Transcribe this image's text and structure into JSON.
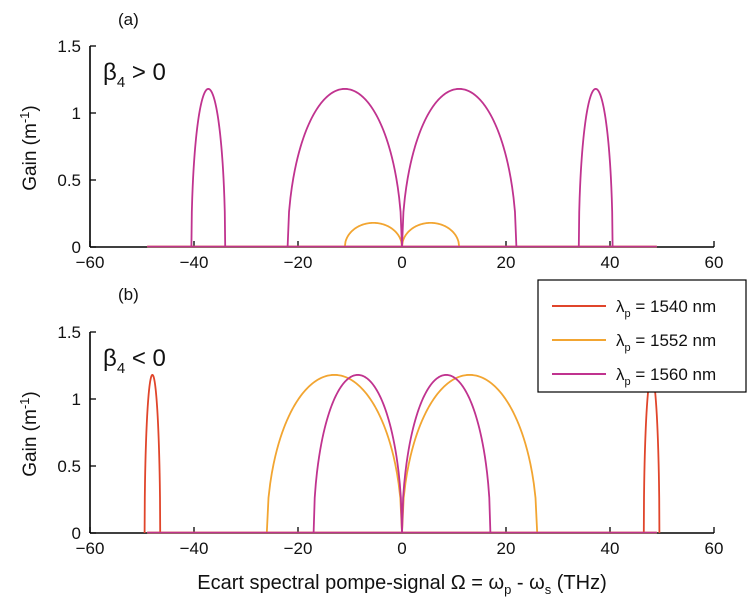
{
  "colors": {
    "red": "#e0452b",
    "orange": "#f2a531",
    "magenta": "#c0338f"
  },
  "legend": {
    "entries": [
      {
        "prefix": "λ",
        "sub": "p",
        "text": " = 1540 nm",
        "color": "#e0452b"
      },
      {
        "prefix": "λ",
        "sub": "p",
        "text": " = 1552 nm",
        "color": "#f2a531"
      },
      {
        "prefix": "λ",
        "sub": "p",
        "text": " = 1560 nm",
        "color": "#c0338f"
      }
    ]
  },
  "xlabel": {
    "main": "Ecart spectral pompe-signal Ω = ω",
    "sub1": "p",
    "mid": " - ω",
    "sub2": "s",
    "end": " (THz)"
  },
  "chart_data": [
    {
      "type": "line",
      "panel_label": "(a)",
      "annotation": {
        "main": "β",
        "sub": "4",
        "rest": " > 0"
      },
      "ylabel": {
        "main": "Gain (m",
        "sup": "-1",
        "end": ")"
      },
      "xlim": [
        -60,
        60
      ],
      "ylim": [
        0,
        1.5
      ],
      "xticks": [
        -60,
        -40,
        -20,
        0,
        20,
        40,
        60
      ],
      "xtick_labels": [
        "−60",
        "−40",
        "−20",
        "0",
        "20",
        "40",
        "60"
      ],
      "yticks": [
        0,
        0.5,
        1,
        1.5
      ],
      "ytick_labels": [
        "0",
        "0.5",
        "1",
        "1.5"
      ],
      "baseline": [
        -49,
        49
      ],
      "series": [
        {
          "name": "λp = 1540 nm",
          "color": "#e0452b",
          "lobes": []
        },
        {
          "name": "λp = 1552 nm",
          "color": "#f2a531",
          "lobes": [
            [
              -11,
              0,
              0.18
            ],
            [
              0,
              11,
              0.18
            ]
          ]
        },
        {
          "name": "λp = 1560 nm",
          "color": "#c0338f",
          "lobes": [
            [
              -40.5,
              -34,
              1.18
            ],
            [
              -22,
              0,
              1.18
            ],
            [
              0,
              22,
              1.18
            ],
            [
              34,
              40.5,
              1.18
            ]
          ]
        }
      ]
    },
    {
      "type": "line",
      "panel_label": "(b)",
      "annotation": {
        "main": "β",
        "sub": "4",
        "rest": " < 0"
      },
      "ylabel": {
        "main": "Gain (m",
        "sup": "-1",
        "end": ")"
      },
      "xlim": [
        -60,
        60
      ],
      "ylim": [
        0,
        1.5
      ],
      "xticks": [
        -60,
        -40,
        -20,
        0,
        20,
        40,
        60
      ],
      "xtick_labels": [
        "−60",
        "−40",
        "−20",
        "0",
        "20",
        "40",
        "60"
      ],
      "yticks": [
        0,
        0.5,
        1,
        1.5
      ],
      "ytick_labels": [
        "0",
        "0.5",
        "1",
        "1.5"
      ],
      "baseline": [
        -49,
        49
      ],
      "series": [
        {
          "name": "λp = 1540 nm",
          "color": "#e0452b",
          "lobes": [
            [
              -49.5,
              -46.5,
              1.18
            ],
            [
              46.5,
              49.5,
              1.18
            ]
          ]
        },
        {
          "name": "λp = 1552 nm",
          "color": "#f2a531",
          "lobes": [
            [
              -26,
              0,
              1.18
            ],
            [
              0,
              26,
              1.18
            ]
          ]
        },
        {
          "name": "λp = 1560 nm",
          "color": "#c0338f",
          "lobes": [
            [
              -17,
              0,
              1.18
            ],
            [
              0,
              17,
              1.18
            ]
          ]
        }
      ]
    }
  ]
}
